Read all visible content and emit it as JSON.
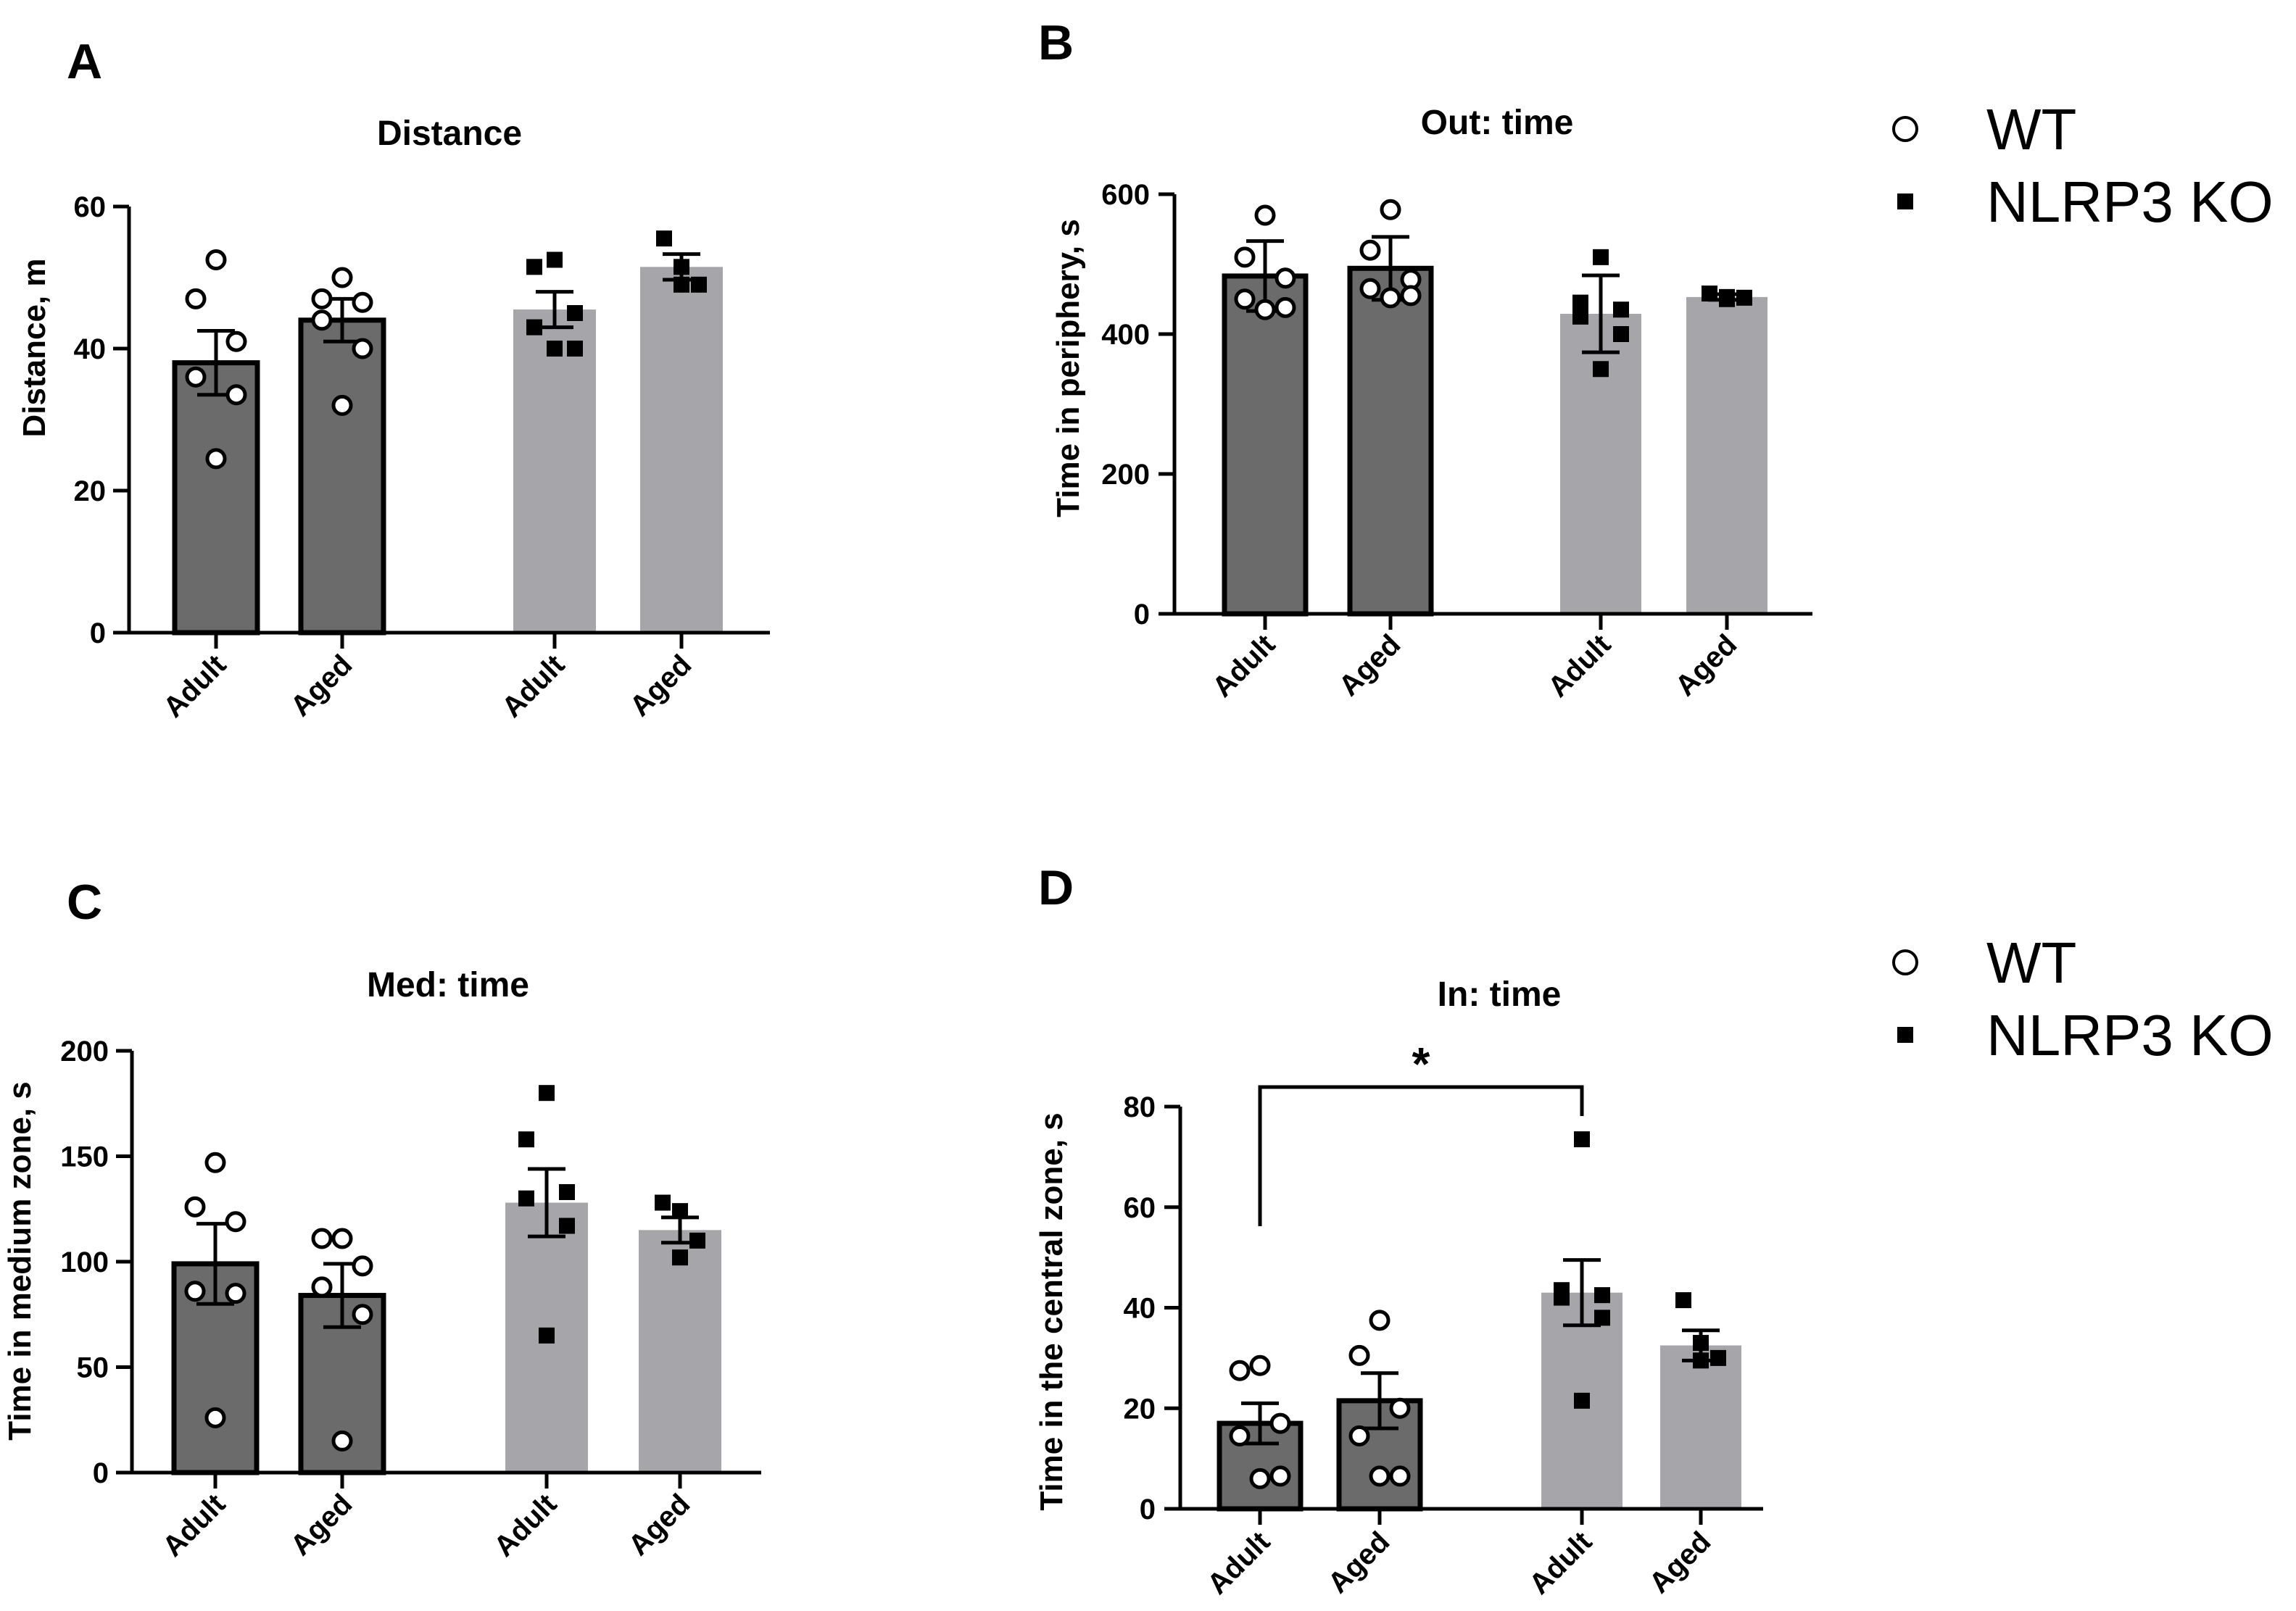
{
  "colors": {
    "wt_bar": "#6b6b6b",
    "ko_bar": "#a6a6aa",
    "axis": "#000000",
    "marker_wt_fill": "#ffffff",
    "marker_ko_fill": "#000000"
  },
  "legends": [
    {
      "entries": [
        {
          "marker": "open-circle",
          "label": "WT"
        },
        {
          "marker": "filled-square",
          "label": "NLRP3 KO"
        }
      ]
    },
    {
      "entries": [
        {
          "marker": "open-circle",
          "label": "WT"
        },
        {
          "marker": "filled-square",
          "label": "NLRP3 KO"
        }
      ]
    }
  ],
  "chart_data": [
    {
      "panel": "A",
      "type": "bar",
      "title": "Distance",
      "ylabel": "Distance, m",
      "ylim": [
        0,
        60
      ],
      "yticks": [
        0,
        20,
        40,
        60
      ],
      "categories": [
        "Adult",
        "Aged",
        "Adult",
        "Aged"
      ],
      "groups": [
        "WT",
        "WT",
        "NLRP3 KO",
        "NLRP3 KO"
      ],
      "values": [
        38,
        44,
        45.5,
        51.5
      ],
      "errors": [
        4.5,
        3,
        2.5,
        1.8
      ],
      "points": [
        [
          52.5,
          47,
          41,
          36,
          33.5,
          24.5
        ],
        [
          50,
          47,
          46.5,
          44,
          40,
          32
        ],
        [
          52.5,
          51.5,
          45,
          43,
          40,
          40
        ],
        [
          55.5,
          51.5,
          49,
          49
        ]
      ],
      "significance": []
    },
    {
      "panel": "B",
      "type": "bar",
      "title": "Out: time",
      "ylabel": "Time in periphery, s",
      "ylim": [
        0,
        600
      ],
      "yticks": [
        0,
        200,
        400,
        600
      ],
      "categories": [
        "Adult",
        "Aged",
        "Adult",
        "Aged"
      ],
      "groups": [
        "WT",
        "WT",
        "NLRP3 KO",
        "NLRP3 KO"
      ],
      "values": [
        483,
        494,
        429,
        453
      ],
      "errors": [
        50,
        45,
        55,
        4
      ],
      "points": [
        [
          570,
          510,
          480,
          450,
          438,
          435
        ],
        [
          578,
          520,
          478,
          465,
          455,
          452
        ],
        [
          510,
          445,
          435,
          425,
          400,
          350
        ],
        [
          458,
          453,
          452,
          450
        ]
      ],
      "significance": []
    },
    {
      "panel": "C",
      "type": "bar",
      "title": "Med: time",
      "ylabel": "Time in medium zone, s",
      "ylim": [
        0,
        200
      ],
      "yticks": [
        0,
        50,
        100,
        150,
        200
      ],
      "categories": [
        "Adult",
        "Aged",
        "Adult",
        "Aged"
      ],
      "groups": [
        "WT",
        "WT",
        "NLRP3 KO",
        "NLRP3 KO"
      ],
      "values": [
        99,
        84,
        128,
        115
      ],
      "errors": [
        19,
        15,
        16,
        6
      ],
      "points": [
        [
          147,
          126,
          119,
          86,
          85,
          26
        ],
        [
          111,
          111,
          98,
          88,
          75,
          15
        ],
        [
          180,
          158,
          133,
          130,
          117,
          65
        ],
        [
          128,
          124,
          110,
          102
        ]
      ],
      "significance": []
    },
    {
      "panel": "D",
      "type": "bar",
      "title": "In: time",
      "ylabel": "Time in the central zone, s",
      "ylim": [
        0,
        80
      ],
      "yticks": [
        0,
        20,
        40,
        60,
        80
      ],
      "categories": [
        "Adult",
        "Aged",
        "Adult",
        "Aged"
      ],
      "groups": [
        "WT",
        "WT",
        "NLRP3 KO",
        "NLRP3 KO"
      ],
      "values": [
        17,
        21.5,
        43,
        32.5
      ],
      "errors": [
        4,
        5.5,
        6.5,
        3
      ],
      "points": [
        [
          28.5,
          27.5,
          17,
          14.5,
          6.5,
          6
        ],
        [
          37.5,
          30.5,
          20,
          14.5,
          6.5,
          6.5
        ],
        [
          73.5,
          43.5,
          42.5,
          42,
          38,
          21.5
        ],
        [
          41.5,
          33,
          30,
          29.5
        ]
      ],
      "significance": [
        {
          "from": 0,
          "to": 2,
          "label": "*"
        }
      ]
    }
  ]
}
